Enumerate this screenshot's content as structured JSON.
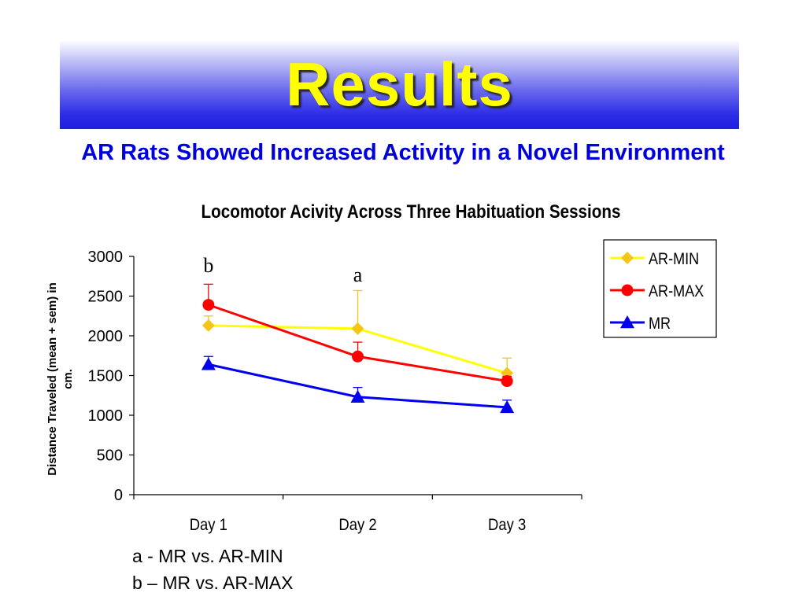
{
  "slide": {
    "title": "Results",
    "subtitle": "AR Rats Showed Increased Activity in a Novel Environment",
    "footnotes": [
      "a - MR vs. AR-MIN",
      "b – MR vs. AR-MAX"
    ]
  },
  "colors": {
    "title_text": "#ffff00",
    "subtitle_text": "#0000dd",
    "banner_dark": "#1f1fe0"
  },
  "chart_data": {
    "type": "line",
    "title": "Locomotor Acivity Across Three Habituation Sessions",
    "xlabel": "",
    "ylabel": "Distance Traveled (mean + sem) in cm.",
    "categories": [
      "Day 1",
      "Day 2",
      "Day 3"
    ],
    "ylim": [
      0,
      3000
    ],
    "yticks": [
      "0",
      "500",
      "1000",
      "1500",
      "2000",
      "2500",
      "3000"
    ],
    "grid": false,
    "legend_position": "top-right",
    "series": [
      {
        "name": "AR-MIN",
        "color": "#ffff00",
        "marker": "diamond",
        "markerColor": "#f5c518",
        "values": [
          2130,
          2090,
          1530
        ],
        "errors": [
          120,
          480,
          190
        ]
      },
      {
        "name": "AR-MAX",
        "color": "#ff0000",
        "marker": "circle",
        "markerColor": "#ff0000",
        "values": [
          2390,
          1740,
          1430
        ],
        "errors": [
          260,
          180,
          60
        ]
      },
      {
        "name": "MR",
        "color": "#0000ee",
        "marker": "triangle",
        "markerColor": "#0000ee",
        "values": [
          1640,
          1230,
          1100
        ],
        "errors": [
          100,
          120,
          90
        ]
      }
    ],
    "annotations": [
      {
        "text": "b",
        "category": "Day 1",
        "y": 2920
      },
      {
        "text": "a",
        "category": "Day 2",
        "y": 2800
      }
    ]
  }
}
